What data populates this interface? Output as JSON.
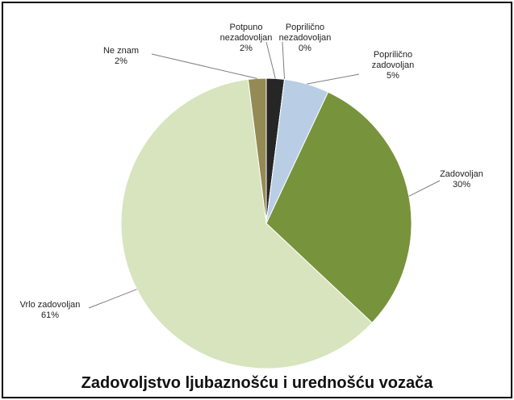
{
  "chart_data": {
    "type": "pie",
    "title": "Zadovoljstvo ljubaznošću i urednošću vozača",
    "categories": [
      "Potpuno nezadovoljan",
      "Poprilično nezadovoljan",
      "Poprilično zadovoljan",
      "Zadovoljan",
      "Vrlo zadovoljan",
      "Ne znam"
    ],
    "values": [
      2,
      0,
      5,
      30,
      61,
      2
    ],
    "value_labels": [
      "2%",
      "0%",
      "5%",
      "30%",
      "61%",
      "2%"
    ],
    "colors": [
      "#262626",
      "#7f7f7f",
      "#b9cde5",
      "#77933c",
      "#d7e4bd",
      "#948a54"
    ]
  }
}
